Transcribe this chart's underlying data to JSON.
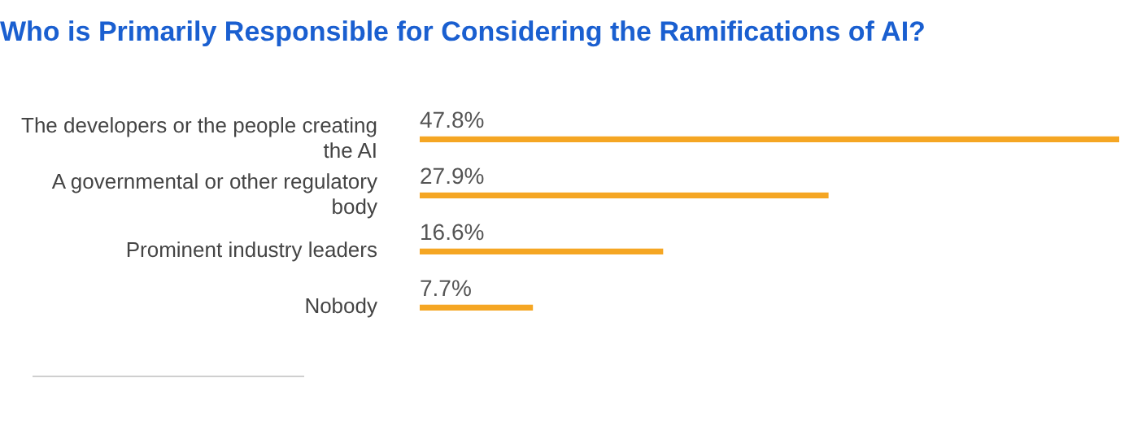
{
  "chart_data": {
    "type": "bar",
    "orientation": "horizontal",
    "title": "Who is Primarily Responsible for Considering the Ramifications of AI?",
    "categories": [
      "The developers or the people creating the AI",
      "A governmental or other regulatory body",
      "Prominent industry leaders",
      "Nobody"
    ],
    "values": [
      47.8,
      27.9,
      16.6,
      7.7
    ],
    "value_labels": [
      "47.8%",
      "27.9%",
      "16.6%",
      "7.7%"
    ],
    "color": "#f5a623",
    "tick_labels": "y",
    "grid": false,
    "legend": false
  }
}
